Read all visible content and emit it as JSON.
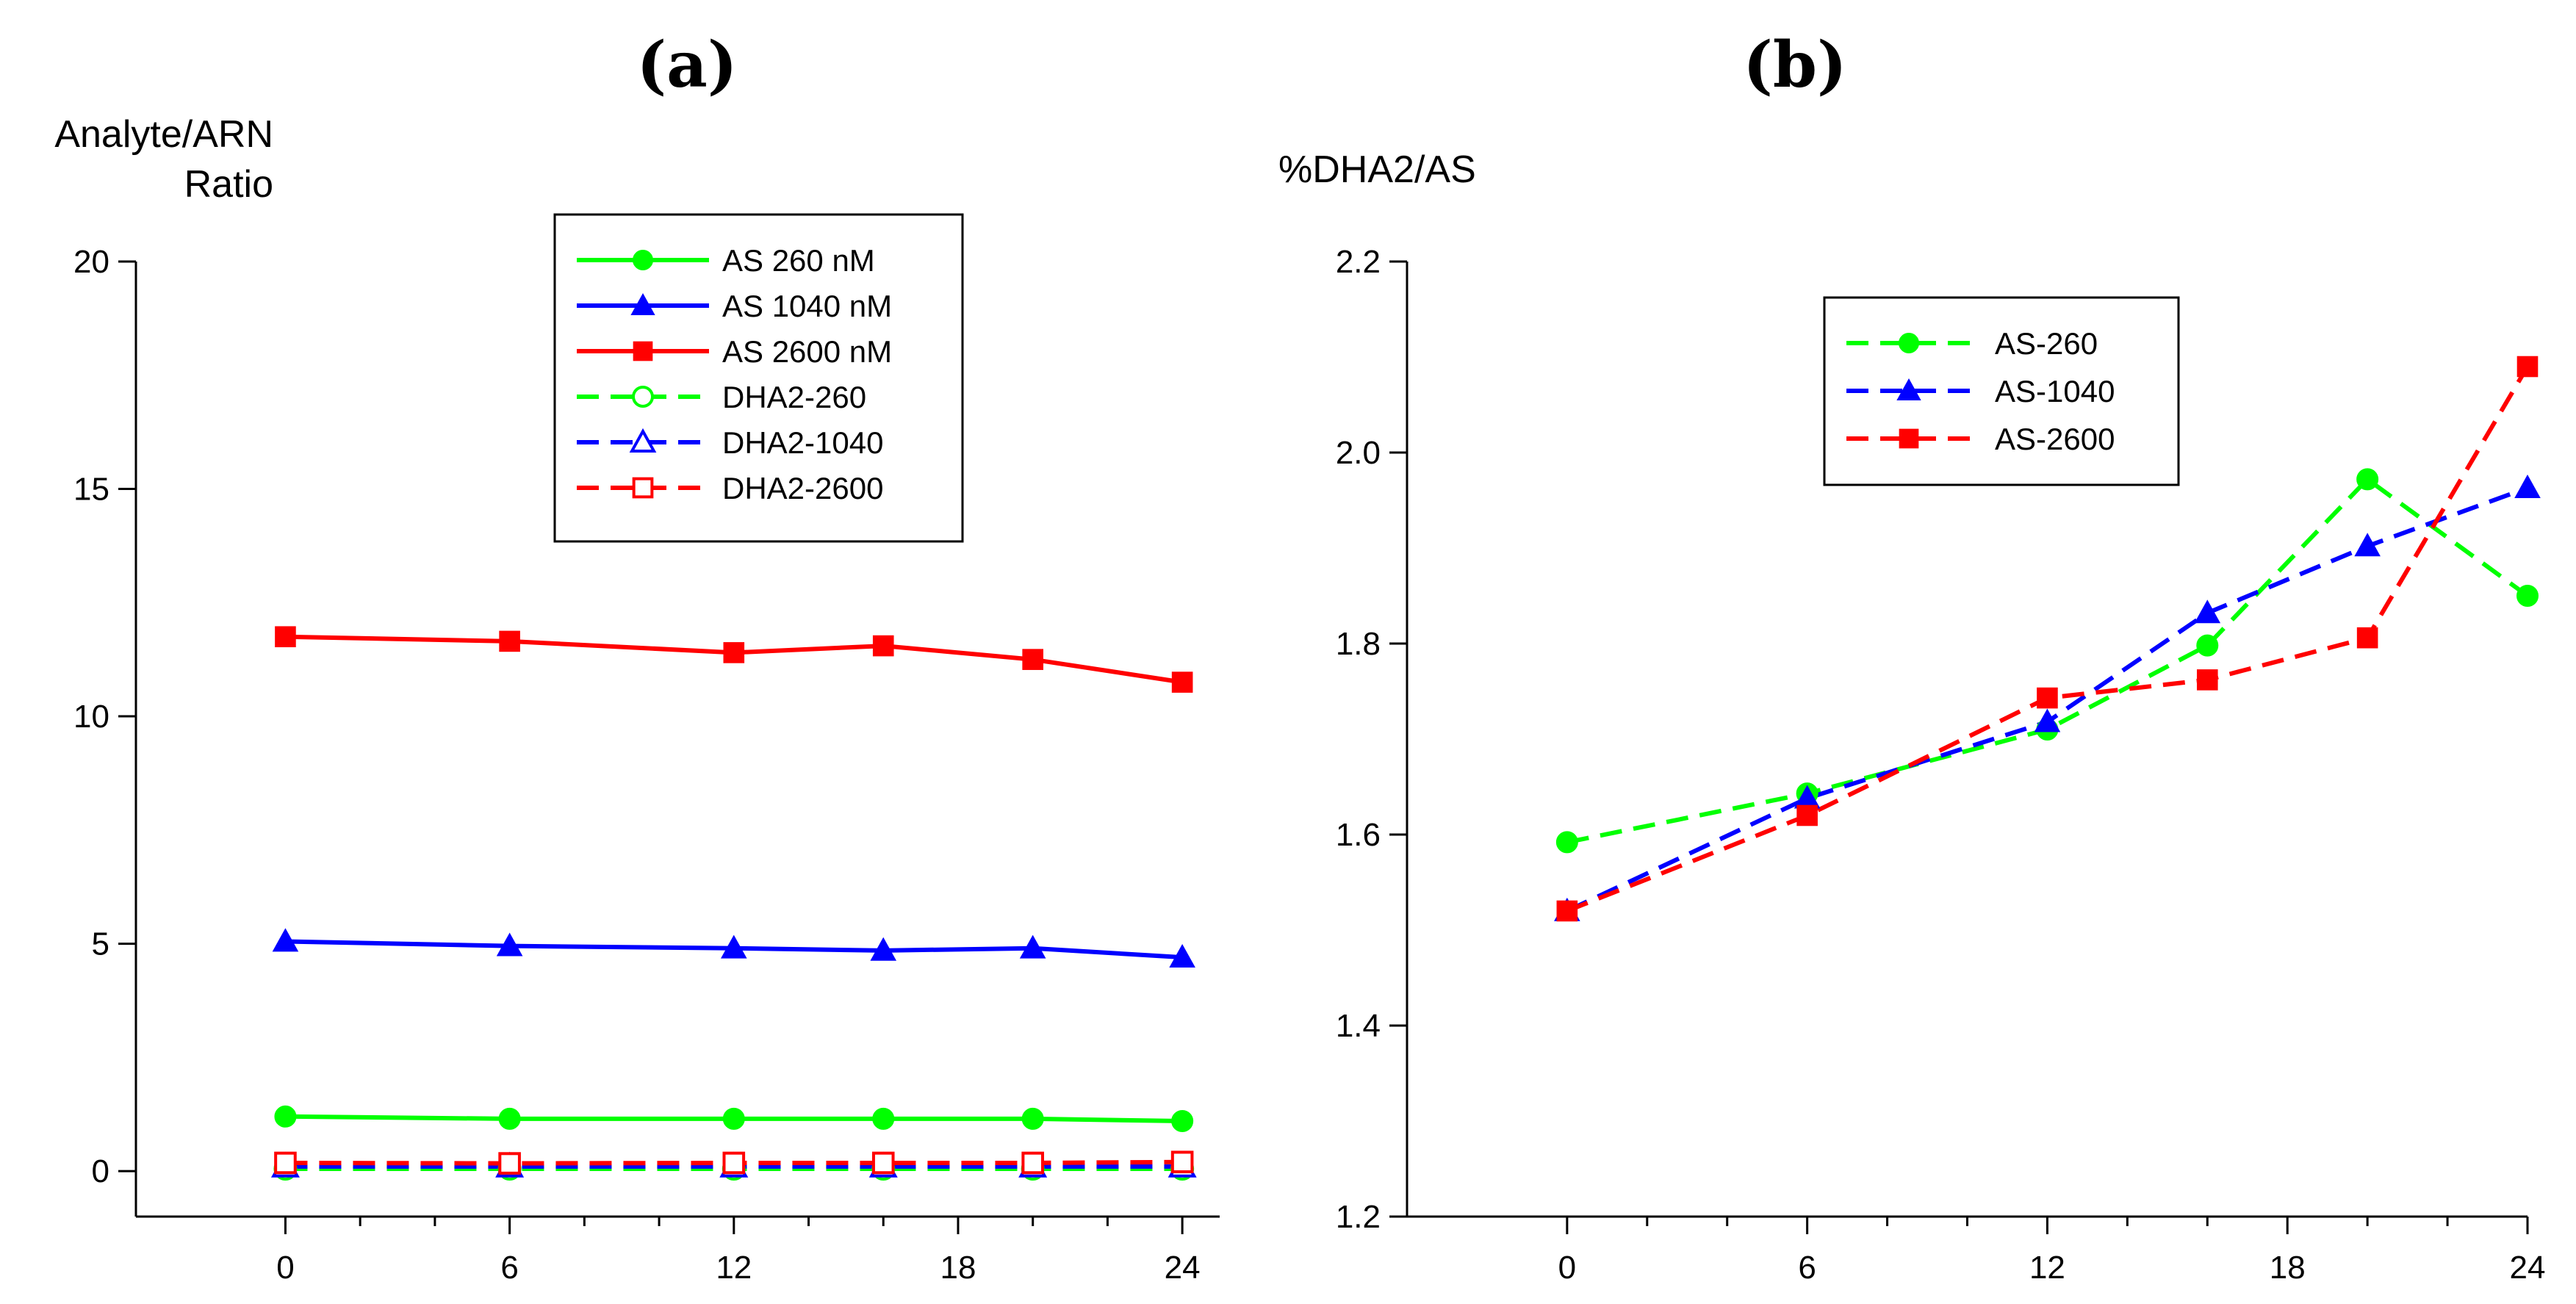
{
  "chart_data": [
    {
      "type": "line",
      "panel_label": "(a)",
      "ylabel_line1": "Analyte/ARN",
      "ylabel_line2": "Ratio",
      "xlabel": "",
      "xlim": [
        -4,
        25
      ],
      "ylim": [
        -1,
        20
      ],
      "xticks": [
        0,
        6,
        12,
        18,
        24
      ],
      "xticks_minor": [
        2,
        4,
        8,
        10,
        14,
        16,
        20,
        22
      ],
      "yticks": [
        0,
        5,
        10,
        15,
        20
      ],
      "x": [
        0,
        6,
        12,
        16,
        20,
        24
      ],
      "legend": "top-right",
      "series": [
        {
          "name": "AS 260 nM",
          "color": "#00ff00",
          "marker": "circle",
          "filled": true,
          "dashed": false,
          "values": [
            1.2,
            1.15,
            1.15,
            1.15,
            1.15,
            1.1
          ]
        },
        {
          "name": "AS 1040 nM",
          "color": "#0000ff",
          "marker": "triangle",
          "filled": true,
          "dashed": false,
          "values": [
            5.05,
            4.95,
            4.9,
            4.85,
            4.9,
            4.7
          ]
        },
        {
          "name": "AS 2600 nM",
          "color": "#ff0000",
          "marker": "square",
          "filled": true,
          "dashed": false,
          "values": [
            11.75,
            11.65,
            11.4,
            11.55,
            11.25,
            10.75
          ]
        },
        {
          "name": "DHA2-260",
          "color": "#00ff00",
          "marker": "circle",
          "filled": false,
          "dashed": true,
          "values": [
            0.05,
            0.05,
            0.05,
            0.05,
            0.05,
            0.05
          ]
        },
        {
          "name": "DHA2-1040",
          "color": "#0000ff",
          "marker": "triangle",
          "filled": false,
          "dashed": true,
          "values": [
            0.1,
            0.1,
            0.1,
            0.1,
            0.1,
            0.1
          ]
        },
        {
          "name": "DHA2-2600",
          "color": "#ff0000",
          "marker": "square",
          "filled": false,
          "dashed": true,
          "values": [
            0.18,
            0.17,
            0.18,
            0.18,
            0.18,
            0.2
          ]
        }
      ]
    },
    {
      "type": "line",
      "panel_label": "(b)",
      "ylabel": "%DHA2/AS",
      "xlabel": "",
      "xlim": [
        -4,
        24
      ],
      "ylim": [
        1.2,
        2.2
      ],
      "xticks": [
        0,
        6,
        12,
        18,
        24
      ],
      "xticks_minor": [
        2,
        4,
        8,
        10,
        14,
        16,
        20,
        22
      ],
      "yticks": [
        1.2,
        1.4,
        1.6,
        1.8,
        2.0,
        2.2
      ],
      "x": [
        0,
        6,
        12,
        16,
        20,
        24
      ],
      "legend": "top-right",
      "series": [
        {
          "name": "AS-260",
          "color": "#00ff00",
          "marker": "circle",
          "filled": true,
          "dashed": true,
          "values": [
            1.592,
            1.643,
            1.71,
            1.798,
            1.972,
            1.85
          ]
        },
        {
          "name": "AS-1040",
          "color": "#0000ff",
          "marker": "triangle",
          "filled": true,
          "dashed": true,
          "values": [
            1.52,
            1.638,
            1.718,
            1.832,
            1.902,
            1.963
          ]
        },
        {
          "name": "AS-2600",
          "color": "#ff0000",
          "marker": "square",
          "filled": true,
          "dashed": true,
          "values": [
            1.52,
            1.62,
            1.743,
            1.762,
            1.806,
            2.09
          ]
        }
      ]
    }
  ]
}
